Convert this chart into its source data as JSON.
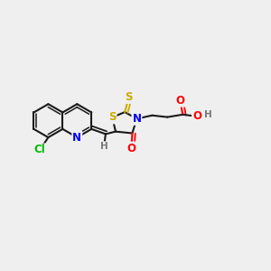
{
  "background_color": "#efefef",
  "bond_color": "#1a1a1a",
  "atom_colors": {
    "N": "#0000ff",
    "O": "#ff0000",
    "S": "#ccaa00",
    "Cl": "#00bb00",
    "C": "#1a1a1a",
    "H": "#777777"
  },
  "figsize": [
    3.0,
    3.0
  ],
  "dpi": 100
}
